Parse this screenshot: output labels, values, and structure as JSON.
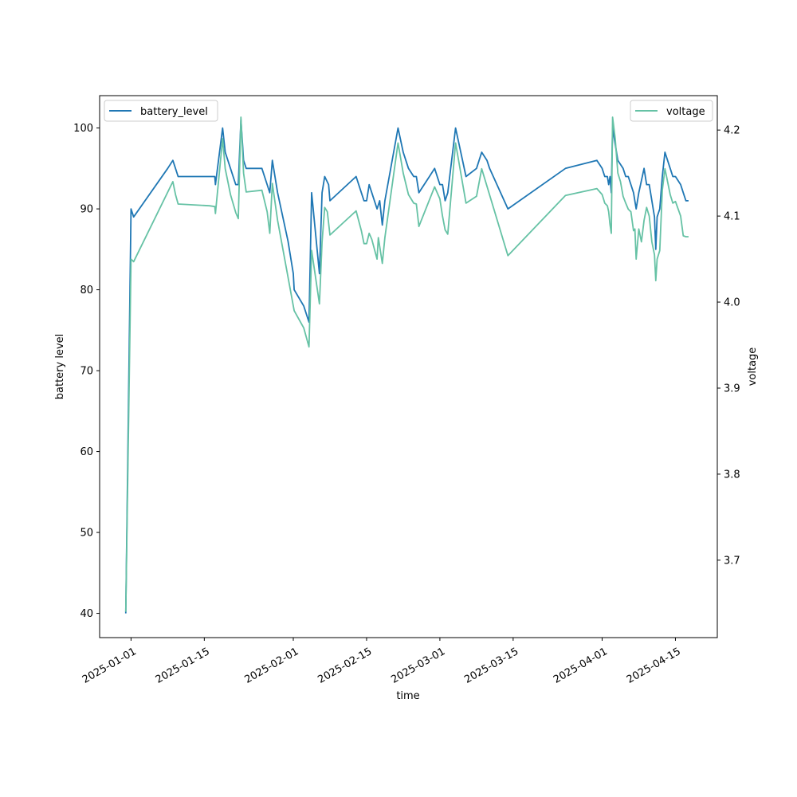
{
  "chart_data": {
    "type": "line",
    "xlabel": "time",
    "ylabel": "battery level",
    "y2label": "voltage",
    "xlim": [
      "2024-12-26",
      "2025-04-23"
    ],
    "ylim": [
      37,
      104
    ],
    "y2lim": [
      3.61,
      4.24
    ],
    "x_ticks": [
      "2025-01-01",
      "2025-01-15",
      "2025-02-01",
      "2025-02-15",
      "2025-03-01",
      "2025-03-15",
      "2025-04-01",
      "2025-04-15"
    ],
    "y_ticks": [
      40,
      50,
      60,
      70,
      80,
      90,
      100
    ],
    "y2_ticks": [
      "3.7",
      "3.8",
      "3.9",
      "4.0",
      "4.1",
      "4.2"
    ],
    "grid": false,
    "legend_left": "top-left",
    "legend_right": "top-right",
    "colors": {
      "battery_level": "#1f77b4",
      "voltage": "#66c2a5"
    },
    "series": [
      {
        "name": "battery_level",
        "axis": "left",
        "points": [
          [
            "2024-12-31",
            40
          ],
          [
            "2025-01-01",
            90
          ],
          [
            "2025-01-01T12",
            89
          ],
          [
            "2025-01-08",
            95
          ],
          [
            "2025-01-09",
            96
          ],
          [
            "2025-01-10",
            94
          ],
          [
            "2025-01-16",
            94
          ],
          [
            "2025-01-17",
            94
          ],
          [
            "2025-01-17T03",
            93
          ],
          [
            "2025-01-18T12",
            100
          ],
          [
            "2025-01-19",
            97
          ],
          [
            "2025-01-20",
            95
          ],
          [
            "2025-01-21",
            93
          ],
          [
            "2025-01-21T12",
            93
          ],
          [
            "2025-01-22",
            101
          ],
          [
            "2025-01-22T12",
            96
          ],
          [
            "2025-01-23",
            95
          ],
          [
            "2025-01-26",
            95
          ],
          [
            "2025-01-27",
            93
          ],
          [
            "2025-01-27T12",
            92
          ],
          [
            "2025-01-28",
            96
          ],
          [
            "2025-01-29",
            92
          ],
          [
            "2025-01-31",
            86
          ],
          [
            "2025-02-01",
            82
          ],
          [
            "2025-02-01T04",
            80
          ],
          [
            "2025-02-03",
            78
          ],
          [
            "2025-02-04",
            76
          ],
          [
            "2025-02-04T12",
            92
          ],
          [
            "2025-02-06",
            82
          ],
          [
            "2025-02-06T12",
            92
          ],
          [
            "2025-02-07",
            94
          ],
          [
            "2025-02-07T18",
            93
          ],
          [
            "2025-02-08",
            91
          ],
          [
            "2025-02-13",
            94
          ],
          [
            "2025-02-14",
            92
          ],
          [
            "2025-02-14T12",
            91
          ],
          [
            "2025-02-15",
            91
          ],
          [
            "2025-02-15T12",
            93
          ],
          [
            "2025-02-16",
            92
          ],
          [
            "2025-02-17",
            90
          ],
          [
            "2025-02-17T12",
            91
          ],
          [
            "2025-02-18",
            88
          ],
          [
            "2025-02-18T12",
            91
          ],
          [
            "2025-02-21",
            100
          ],
          [
            "2025-02-22",
            97
          ],
          [
            "2025-02-23",
            95
          ],
          [
            "2025-02-24",
            94
          ],
          [
            "2025-02-24T12",
            94
          ],
          [
            "2025-02-25",
            92
          ],
          [
            "2025-02-27",
            94
          ],
          [
            "2025-02-28",
            95
          ],
          [
            "2025-03-01",
            93
          ],
          [
            "2025-03-01T12",
            93
          ],
          [
            "2025-03-02",
            91
          ],
          [
            "2025-03-02T12",
            92
          ],
          [
            "2025-03-04",
            100
          ],
          [
            "2025-03-06",
            94
          ],
          [
            "2025-03-08",
            95
          ],
          [
            "2025-03-09",
            97
          ],
          [
            "2025-03-10",
            96
          ],
          [
            "2025-03-10T12",
            95
          ],
          [
            "2025-03-14",
            90
          ],
          [
            "2025-03-25",
            95
          ],
          [
            "2025-03-31",
            96
          ],
          [
            "2025-04-01",
            95
          ],
          [
            "2025-04-01T12",
            94
          ],
          [
            "2025-04-02",
            94
          ],
          [
            "2025-04-02T06",
            93
          ],
          [
            "2025-04-02T12",
            94
          ],
          [
            "2025-04-02T18",
            92
          ],
          [
            "2025-04-03",
            100
          ],
          [
            "2025-04-03T12",
            98
          ],
          [
            "2025-04-04",
            96
          ],
          [
            "2025-04-05",
            95
          ],
          [
            "2025-04-05T12",
            94
          ],
          [
            "2025-04-06",
            94
          ],
          [
            "2025-04-06T12",
            93
          ],
          [
            "2025-04-07",
            92
          ],
          [
            "2025-04-07T12",
            90
          ],
          [
            "2025-04-08",
            92
          ],
          [
            "2025-04-09",
            95
          ],
          [
            "2025-04-09T12",
            93
          ],
          [
            "2025-04-10",
            93
          ],
          [
            "2025-04-10T12",
            91
          ],
          [
            "2025-04-11",
            89
          ],
          [
            "2025-04-11T06",
            85
          ],
          [
            "2025-04-11T12",
            89
          ],
          [
            "2025-04-12",
            90
          ],
          [
            "2025-04-12T12",
            94
          ],
          [
            "2025-04-13",
            97
          ],
          [
            "2025-04-14",
            95
          ],
          [
            "2025-04-14T12",
            94
          ],
          [
            "2025-04-15",
            94
          ],
          [
            "2025-04-16",
            93
          ],
          [
            "2025-04-16T12",
            92
          ],
          [
            "2025-04-17",
            91
          ],
          [
            "2025-04-17T12",
            91
          ]
        ]
      },
      {
        "name": "voltage",
        "axis": "right",
        "points": [
          [
            "2024-12-31",
            3.64
          ],
          [
            "2025-01-01",
            4.05
          ],
          [
            "2025-01-01T12",
            4.047
          ],
          [
            "2025-01-09",
            4.14
          ],
          [
            "2025-01-09T12",
            4.125
          ],
          [
            "2025-01-10",
            4.114
          ],
          [
            "2025-01-16",
            4.112
          ],
          [
            "2025-01-17",
            4.111
          ],
          [
            "2025-01-17T03",
            4.103
          ],
          [
            "2025-01-18T12",
            4.19
          ],
          [
            "2025-01-19",
            4.155
          ],
          [
            "2025-01-20",
            4.125
          ],
          [
            "2025-01-21",
            4.104
          ],
          [
            "2025-01-21T12",
            4.097
          ],
          [
            "2025-01-22",
            4.215
          ],
          [
            "2025-01-22T12",
            4.15
          ],
          [
            "2025-01-23",
            4.128
          ],
          [
            "2025-01-26",
            4.13
          ],
          [
            "2025-01-27",
            4.105
          ],
          [
            "2025-01-27T12",
            4.08
          ],
          [
            "2025-01-28",
            4.138
          ],
          [
            "2025-01-29",
            4.095
          ],
          [
            "2025-02-01T04",
            3.99
          ],
          [
            "2025-02-03",
            3.97
          ],
          [
            "2025-02-04",
            3.948
          ],
          [
            "2025-02-04T12",
            4.06
          ],
          [
            "2025-02-06",
            3.998
          ],
          [
            "2025-02-06T12",
            4.07
          ],
          [
            "2025-02-07",
            4.11
          ],
          [
            "2025-02-07T12",
            4.105
          ],
          [
            "2025-02-08",
            4.078
          ],
          [
            "2025-02-13",
            4.106
          ],
          [
            "2025-02-14",
            4.083
          ],
          [
            "2025-02-14T12",
            4.068
          ],
          [
            "2025-02-15",
            4.068
          ],
          [
            "2025-02-15T12",
            4.08
          ],
          [
            "2025-02-16",
            4.073
          ],
          [
            "2025-02-17",
            4.05
          ],
          [
            "2025-02-17T06",
            4.075
          ],
          [
            "2025-02-18",
            4.045
          ],
          [
            "2025-02-18T12",
            4.075
          ],
          [
            "2025-02-21",
            4.185
          ],
          [
            "2025-02-22",
            4.15
          ],
          [
            "2025-02-23",
            4.125
          ],
          [
            "2025-02-24",
            4.115
          ],
          [
            "2025-02-24T12",
            4.114
          ],
          [
            "2025-02-25",
            4.088
          ],
          [
            "2025-02-28",
            4.134
          ],
          [
            "2025-03-01",
            4.12
          ],
          [
            "2025-03-01T12",
            4.1
          ],
          [
            "2025-03-02",
            4.084
          ],
          [
            "2025-03-02T12",
            4.079
          ],
          [
            "2025-03-04",
            4.185
          ],
          [
            "2025-03-06",
            4.115
          ],
          [
            "2025-03-08",
            4.123
          ],
          [
            "2025-03-09",
            4.155
          ],
          [
            "2025-03-14",
            4.054
          ],
          [
            "2025-03-25",
            4.124
          ],
          [
            "2025-03-31",
            4.132
          ],
          [
            "2025-04-01",
            4.125
          ],
          [
            "2025-04-01T06",
            4.12
          ],
          [
            "2025-04-01T12",
            4.115
          ],
          [
            "2025-04-02",
            4.112
          ],
          [
            "2025-04-02T06",
            4.105
          ],
          [
            "2025-04-02T12",
            4.09
          ],
          [
            "2025-04-02T18",
            4.08
          ],
          [
            "2025-04-03",
            4.215
          ],
          [
            "2025-04-03T12",
            4.19
          ],
          [
            "2025-04-04",
            4.15
          ],
          [
            "2025-04-04T12",
            4.14
          ],
          [
            "2025-04-05",
            4.123
          ],
          [
            "2025-04-05T12",
            4.115
          ],
          [
            "2025-04-06",
            4.108
          ],
          [
            "2025-04-06T12",
            4.105
          ],
          [
            "2025-04-07",
            4.083
          ],
          [
            "2025-04-07T06",
            4.085
          ],
          [
            "2025-04-07T12",
            4.05
          ],
          [
            "2025-04-08",
            4.085
          ],
          [
            "2025-04-08T12",
            4.07
          ],
          [
            "2025-04-09",
            4.095
          ],
          [
            "2025-04-09T12",
            4.11
          ],
          [
            "2025-04-10",
            4.1
          ],
          [
            "2025-04-10T12",
            4.07
          ],
          [
            "2025-04-11",
            4.055
          ],
          [
            "2025-04-11T06",
            4.025
          ],
          [
            "2025-04-11T12",
            4.05
          ],
          [
            "2025-04-12",
            4.06
          ],
          [
            "2025-04-12T12",
            4.13
          ],
          [
            "2025-04-13",
            4.155
          ],
          [
            "2025-04-14",
            4.125
          ],
          [
            "2025-04-14T12",
            4.115
          ],
          [
            "2025-04-15",
            4.117
          ],
          [
            "2025-04-16",
            4.1
          ],
          [
            "2025-04-16T12",
            4.077
          ],
          [
            "2025-04-17",
            4.076
          ],
          [
            "2025-04-17T12",
            4.076
          ]
        ]
      }
    ]
  }
}
